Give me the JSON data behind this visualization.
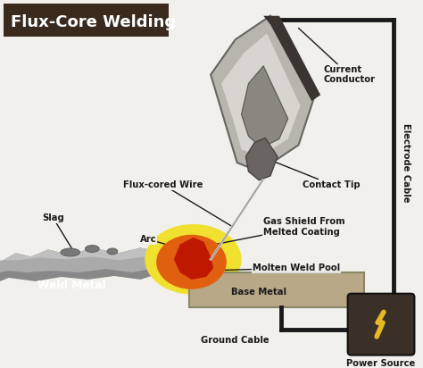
{
  "title": "Flux-Core Welding",
  "title_bg": "#3a2a1e",
  "title_color": "#ffffff",
  "bg_color": "#f2f0ec",
  "labels": {
    "current_conductor": "Current\nConductor",
    "contact_tip": "Contact Tip",
    "gas_shield": "Gas Shield From\nMelted Coating",
    "molten_weld_pool": "Molten Weld Pool",
    "base_metal": "Base Metal",
    "weld_metal": "Weld Metal",
    "arc": "Arc",
    "slag": "Slag",
    "flux_cored_wire": "Flux-cored Wire",
    "electrode_cable": "Electrode Cable",
    "ground_cable": "Ground Cable",
    "power_source": "Power Source"
  },
  "colors": {
    "torch_outer": "#b8b4ae",
    "torch_inner_light": "#d8d5d0",
    "torch_inner_dark": "#8a8680",
    "torch_dark_conductor": "#3a3530",
    "torch_tip_dark": "#6a6560",
    "wire": "#aaaaaa",
    "arc_yellow": "#f0e030",
    "arc_orange": "#e06010",
    "arc_red": "#c01800",
    "weld_dark": "#888888",
    "weld_light": "#aaaaaa",
    "weld_lighter": "#c0c0c0",
    "base_metal": "#b8a888",
    "base_metal_edge": "#888868",
    "slag": "#787878",
    "line_color": "#1a1a1a",
    "power_box": "#3a3028",
    "lightning": "#e8b820"
  }
}
